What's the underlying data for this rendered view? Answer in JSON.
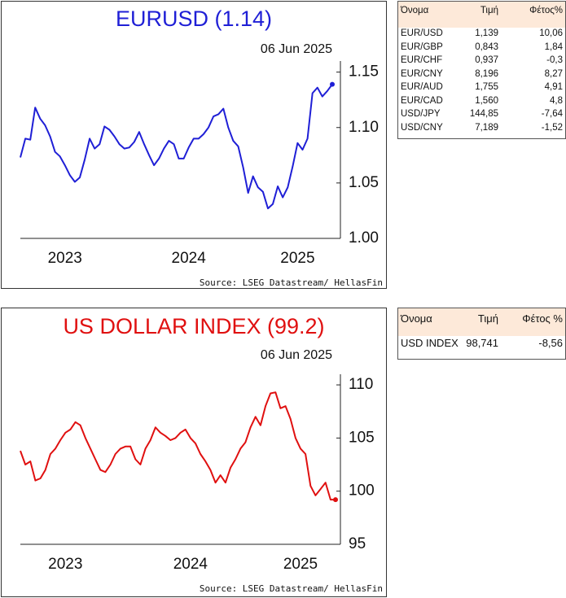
{
  "chart_data": [
    {
      "type": "line",
      "title": "EURUSD (1.14)",
      "subtitle": "06 Jun 2025",
      "source": "Source: LSEG Datastream/ HellasFin",
      "color": "#1f1fd6",
      "last_point_marker": true,
      "categories": [
        null,
        null,
        null,
        null,
        null,
        null,
        null,
        null,
        null,
        "2023",
        null,
        null,
        null,
        null,
        null,
        null,
        null,
        null,
        null,
        null,
        null,
        null,
        null,
        null,
        null,
        null,
        null,
        null,
        null,
        null,
        null,
        null,
        null,
        null,
        "2024",
        null,
        null,
        null,
        null,
        null,
        null,
        null,
        null,
        null,
        null,
        null,
        null,
        null,
        null,
        null,
        null,
        null,
        null,
        null,
        null,
        null,
        "2025",
        null,
        null,
        null,
        null,
        null,
        null,
        null
      ],
      "values": [
        1.073,
        1.09,
        1.089,
        1.118,
        1.108,
        1.102,
        1.092,
        1.078,
        1.074,
        1.066,
        1.057,
        1.051,
        1.055,
        1.071,
        1.09,
        1.081,
        1.085,
        1.101,
        1.098,
        1.092,
        1.085,
        1.081,
        1.082,
        1.087,
        1.096,
        1.085,
        1.075,
        1.066,
        1.072,
        1.081,
        1.088,
        1.085,
        1.072,
        1.072,
        1.082,
        1.09,
        1.09,
        1.094,
        1.1,
        1.11,
        1.112,
        1.117,
        1.1,
        1.088,
        1.083,
        1.064,
        1.041,
        1.056,
        1.046,
        1.042,
        1.027,
        1.031,
        1.047,
        1.037,
        1.046,
        1.065,
        1.086,
        1.08,
        1.09,
        1.131,
        1.136,
        1.128,
        1.133,
        1.139
      ],
      "ylim": [
        1.0,
        1.16
      ],
      "yticks": [
        1.15,
        {
          "value": 1.1,
          "label": "1.10"
        },
        1.05,
        {
          "value": 1,
          "label": "1.00"
        }
      ]
    },
    {
      "type": "line",
      "title": "US DOLLAR INDEX (99.2)",
      "subtitle": "06 Jun 2025",
      "source": "Source: LSEG Datastream/ HellasFin",
      "color": "#e01010",
      "last_point_marker": true,
      "categories": [
        null,
        null,
        null,
        null,
        null,
        null,
        null,
        null,
        null,
        "2023",
        null,
        null,
        null,
        null,
        null,
        null,
        null,
        null,
        null,
        null,
        null,
        null,
        null,
        null,
        null,
        null,
        null,
        null,
        null,
        null,
        null,
        null,
        null,
        null,
        "2024",
        null,
        null,
        null,
        null,
        null,
        null,
        null,
        null,
        null,
        null,
        null,
        null,
        null,
        null,
        null,
        null,
        null,
        null,
        null,
        null,
        null,
        "2025",
        null,
        null,
        null,
        null,
        null,
        null,
        null
      ],
      "values": [
        103.8,
        102.5,
        102.8,
        101.0,
        101.2,
        102.0,
        103.5,
        104.0,
        104.8,
        105.5,
        105.8,
        106.5,
        106.2,
        105.0,
        104.0,
        103.0,
        102.0,
        101.8,
        102.5,
        103.5,
        104.0,
        104.2,
        104.2,
        103.0,
        102.5,
        104.0,
        104.8,
        106.0,
        105.5,
        105.2,
        104.8,
        105.0,
        105.5,
        105.8,
        105.0,
        104.5,
        103.5,
        102.8,
        102.0,
        100.8,
        101.5,
        100.8,
        102.2,
        103.0,
        104.0,
        104.6,
        106.0,
        107.0,
        106.2,
        108.0,
        109.2,
        109.3,
        107.8,
        108.0,
        106.8,
        105.0,
        104.0,
        103.5,
        100.5,
        99.6,
        100.2,
        100.8,
        99.2,
        99.2
      ],
      "ylim": [
        95,
        111
      ],
      "yticks": [
        110,
        105,
        100,
        95
      ]
    }
  ],
  "tables": [
    {
      "columns": [
        "Όνομα",
        "Τιμή",
        "Φέτος%"
      ],
      "rows": [
        [
          "EUR/USD",
          "1,139",
          "10,06"
        ],
        [
          "EUR/GBP",
          "0,843",
          "1,84"
        ],
        [
          "EUR/CHF",
          "0,937",
          "-0,3"
        ],
        [
          "EUR/CNY",
          "8,196",
          "8,27"
        ],
        [
          "EUR/AUD",
          "1,755",
          "4,91"
        ],
        [
          "EUR/CAD",
          "1,560",
          "4,8"
        ],
        [
          "USD/JPY",
          "144,85",
          "-7,64"
        ],
        [
          "USD/CNY",
          "7,189",
          "-1,52"
        ]
      ]
    },
    {
      "columns": [
        "Όνομα",
        "Τιμή",
        "Φέτος %"
      ],
      "rows": [
        [
          "USD INDEX",
          "98,741",
          "-8,56"
        ]
      ]
    }
  ]
}
